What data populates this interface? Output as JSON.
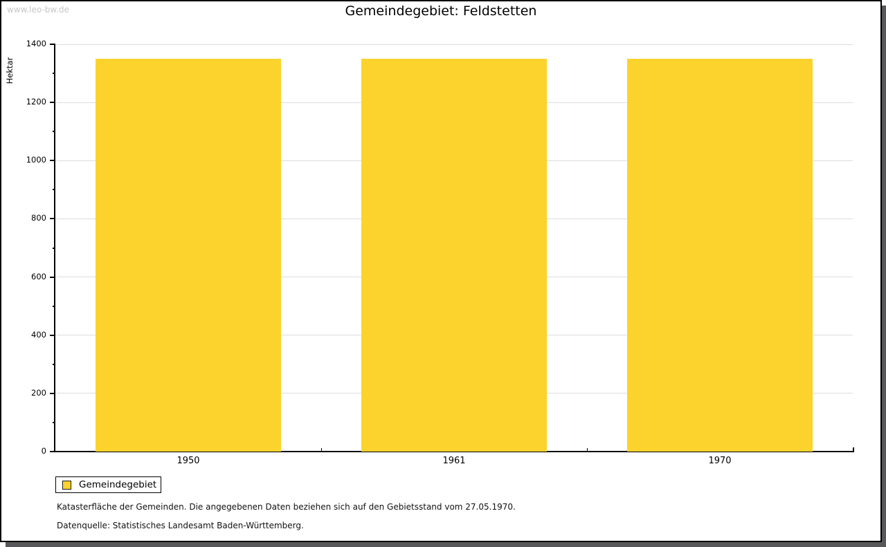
{
  "watermark": "www.leo-bw.de",
  "chart_data": {
    "type": "bar",
    "title": "Gemeindegebiet: Feldstetten",
    "ylabel": "Hektar",
    "xlabel": "",
    "categories": [
      "1950",
      "1961",
      "1970"
    ],
    "series": [
      {
        "name": "Gemeindegebiet",
        "values": [
          1350,
          1350,
          1350
        ]
      }
    ],
    "ylim": [
      0,
      1400
    ],
    "ytick_step": 200,
    "yminor_step": 100,
    "bar_color": "#fcd32c",
    "grid": true,
    "gridline_color": "#dcdcdc",
    "legend_position": "bottom-left"
  },
  "legend": {
    "label": "Gemeindegebiet",
    "swatch_color": "#fcd32c"
  },
  "notes": {
    "line1": "Katasterfläche der Gemeinden. Die angegebenen Daten beziehen sich auf den Gebietsstand vom 27.05.1970.",
    "line2": "Datenquelle: Statistisches Landesamt Baden-Württemberg."
  }
}
